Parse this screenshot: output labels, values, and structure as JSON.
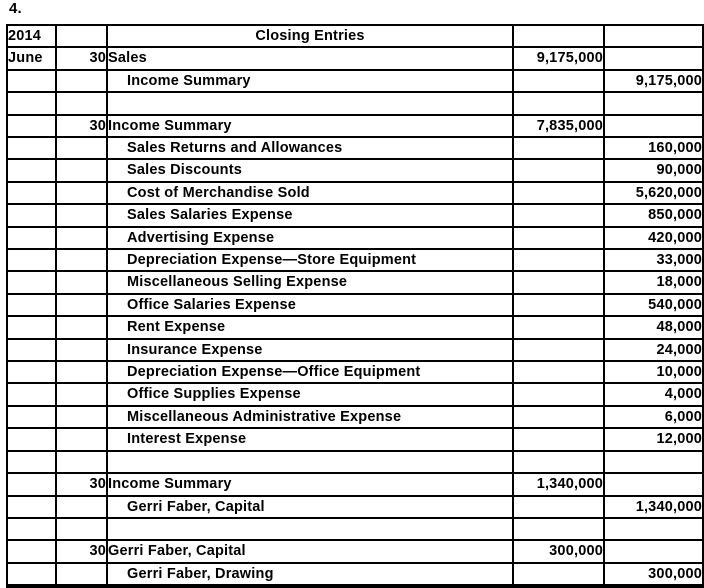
{
  "page": {
    "label": "4."
  },
  "colors": {
    "text": "#000000",
    "border": "#000000",
    "background": "#ffffff"
  },
  "table": {
    "header": {
      "year": "2014",
      "title": "Closing Entries"
    },
    "rows": [
      {
        "month": "June",
        "day": "30",
        "description": "Sales",
        "indent": false,
        "debit": "9,175,000",
        "credit": ""
      },
      {
        "month": "",
        "day": "",
        "description": "Income Summary",
        "indent": true,
        "debit": "",
        "credit": "9,175,000"
      },
      {
        "month": "",
        "day": "",
        "description": "",
        "indent": false,
        "debit": "",
        "credit": ""
      },
      {
        "month": "",
        "day": "30",
        "description": "Income Summary",
        "indent": false,
        "debit": "7,835,000",
        "credit": ""
      },
      {
        "month": "",
        "day": "",
        "description": "Sales Returns and Allowances",
        "indent": true,
        "debit": "",
        "credit": "160,000"
      },
      {
        "month": "",
        "day": "",
        "description": "Sales Discounts",
        "indent": true,
        "debit": "",
        "credit": "90,000"
      },
      {
        "month": "",
        "day": "",
        "description": "Cost of Merchandise Sold",
        "indent": true,
        "debit": "",
        "credit": "5,620,000"
      },
      {
        "month": "",
        "day": "",
        "description": "Sales Salaries Expense",
        "indent": true,
        "debit": "",
        "credit": "850,000"
      },
      {
        "month": "",
        "day": "",
        "description": "Advertising Expense",
        "indent": true,
        "debit": "",
        "credit": "420,000"
      },
      {
        "month": "",
        "day": "",
        "description": "Depreciation Expense—Store Equipment",
        "indent": true,
        "debit": "",
        "credit": "33,000"
      },
      {
        "month": "",
        "day": "",
        "description": "Miscellaneous Selling Expense",
        "indent": true,
        "debit": "",
        "credit": "18,000"
      },
      {
        "month": "",
        "day": "",
        "description": "Office Salaries Expense",
        "indent": true,
        "debit": "",
        "credit": "540,000"
      },
      {
        "month": "",
        "day": "",
        "description": "Rent Expense",
        "indent": true,
        "debit": "",
        "credit": "48,000"
      },
      {
        "month": "",
        "day": "",
        "description": "Insurance Expense",
        "indent": true,
        "debit": "",
        "credit": "24,000"
      },
      {
        "month": "",
        "day": "",
        "description": "Depreciation Expense—Office Equipment",
        "indent": true,
        "debit": "",
        "credit": "10,000"
      },
      {
        "month": "",
        "day": "",
        "description": "Office Supplies Expense",
        "indent": true,
        "debit": "",
        "credit": "4,000"
      },
      {
        "month": "",
        "day": "",
        "description": "Miscellaneous Administrative Expense",
        "indent": true,
        "debit": "",
        "credit": "6,000"
      },
      {
        "month": "",
        "day": "",
        "description": "Interest Expense",
        "indent": true,
        "debit": "",
        "credit": "12,000"
      },
      {
        "month": "",
        "day": "",
        "description": "",
        "indent": false,
        "debit": "",
        "credit": ""
      },
      {
        "month": "",
        "day": "30",
        "description": "Income Summary",
        "indent": false,
        "debit": "1,340,000",
        "credit": ""
      },
      {
        "month": "",
        "day": "",
        "description": "Gerri Faber, Capital",
        "indent": true,
        "debit": "",
        "credit": "1,340,000"
      },
      {
        "month": "",
        "day": "",
        "description": "",
        "indent": false,
        "debit": "",
        "credit": ""
      },
      {
        "month": "",
        "day": "30",
        "description": "Gerri Faber, Capital",
        "indent": false,
        "debit": "300,000",
        "credit": ""
      },
      {
        "month": "",
        "day": "",
        "description": "Gerri Faber, Drawing",
        "indent": true,
        "debit": "",
        "credit": "300,000"
      }
    ]
  }
}
